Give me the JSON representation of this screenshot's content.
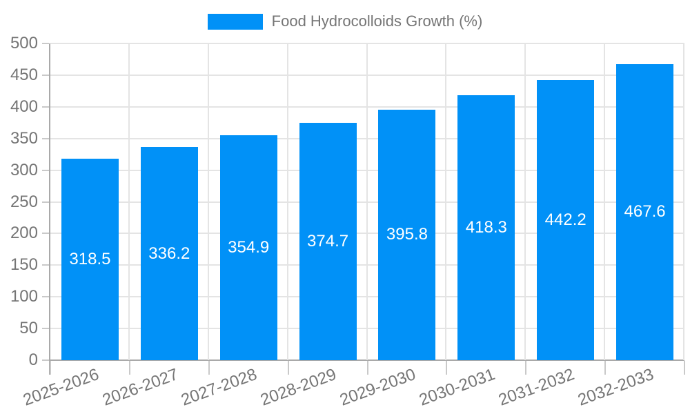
{
  "legend": {
    "label": "Food Hydrocolloids Growth (%)"
  },
  "chart_data": {
    "type": "bar",
    "title": "",
    "xlabel": "",
    "ylabel": "",
    "categories": [
      "2025-2026",
      "2026-2027",
      "2027-2028",
      "2028-2029",
      "2029-2030",
      "2030-2031",
      "2031-2032",
      "2032-2033"
    ],
    "series": [
      {
        "name": "Food Hydrocolloids Growth (%)",
        "values": [
          318.5,
          336.2,
          354.9,
          374.7,
          395.8,
          418.3,
          442.2,
          467.6
        ]
      }
    ],
    "ylim": [
      0,
      500
    ],
    "ytick_step": 50,
    "yticks": [
      0,
      50,
      100,
      150,
      200,
      250,
      300,
      350,
      400,
      450,
      500
    ],
    "grid": "horizontal-and-vertical",
    "legend_position": "top-center",
    "value_labels": "centered-inside-bars",
    "colors": {
      "bar": "#0191f7",
      "value_label": "#ffffff",
      "axis_text": "#757575",
      "legend_text": "#757575",
      "gridline": "#e4e4e4",
      "axis_line": "#a9a9a9",
      "tick": "#c9c9c9",
      "background": "#ffffff"
    }
  }
}
